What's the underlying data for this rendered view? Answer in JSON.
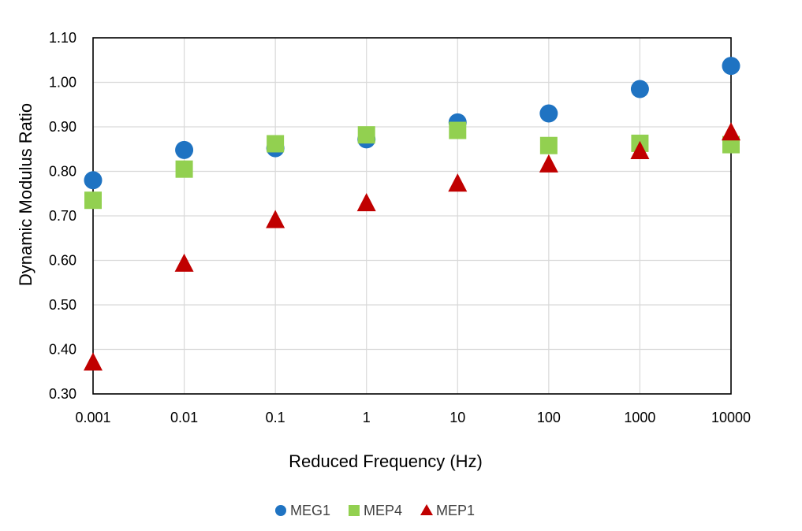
{
  "chart_data": {
    "type": "scatter",
    "title": "",
    "xlabel": "Reduced Frequency (Hz)",
    "ylabel": "Dynamic Modulus Ratio",
    "x_scale": "log",
    "x": [
      0.001,
      0.01,
      0.1,
      1,
      10,
      100,
      1000,
      10000
    ],
    "x_tick_labels": [
      "0.001",
      "0.01",
      "0.1",
      "1",
      "10",
      "100",
      "1000",
      "10000"
    ],
    "ylim": [
      0.3,
      1.1
    ],
    "y_tick_labels": [
      "0.30",
      "0.40",
      "0.50",
      "0.60",
      "0.70",
      "0.80",
      "0.90",
      "1.00",
      "1.10"
    ],
    "grid": true,
    "legend_position": "bottom",
    "series": [
      {
        "name": "MEG1",
        "marker": "circle",
        "color": "#1f73c2",
        "values": [
          0.78,
          0.848,
          0.852,
          0.872,
          0.91,
          0.93,
          0.985,
          1.037
        ]
      },
      {
        "name": "MEP4",
        "marker": "square",
        "color": "#92d050",
        "values": [
          0.735,
          0.805,
          0.862,
          0.882,
          0.892,
          0.858,
          0.863,
          0.86
        ]
      },
      {
        "name": "MEP1",
        "marker": "triangle",
        "color": "#c00000",
        "values": [
          0.37,
          0.592,
          0.69,
          0.728,
          0.772,
          0.815,
          0.845,
          0.887
        ]
      }
    ]
  }
}
